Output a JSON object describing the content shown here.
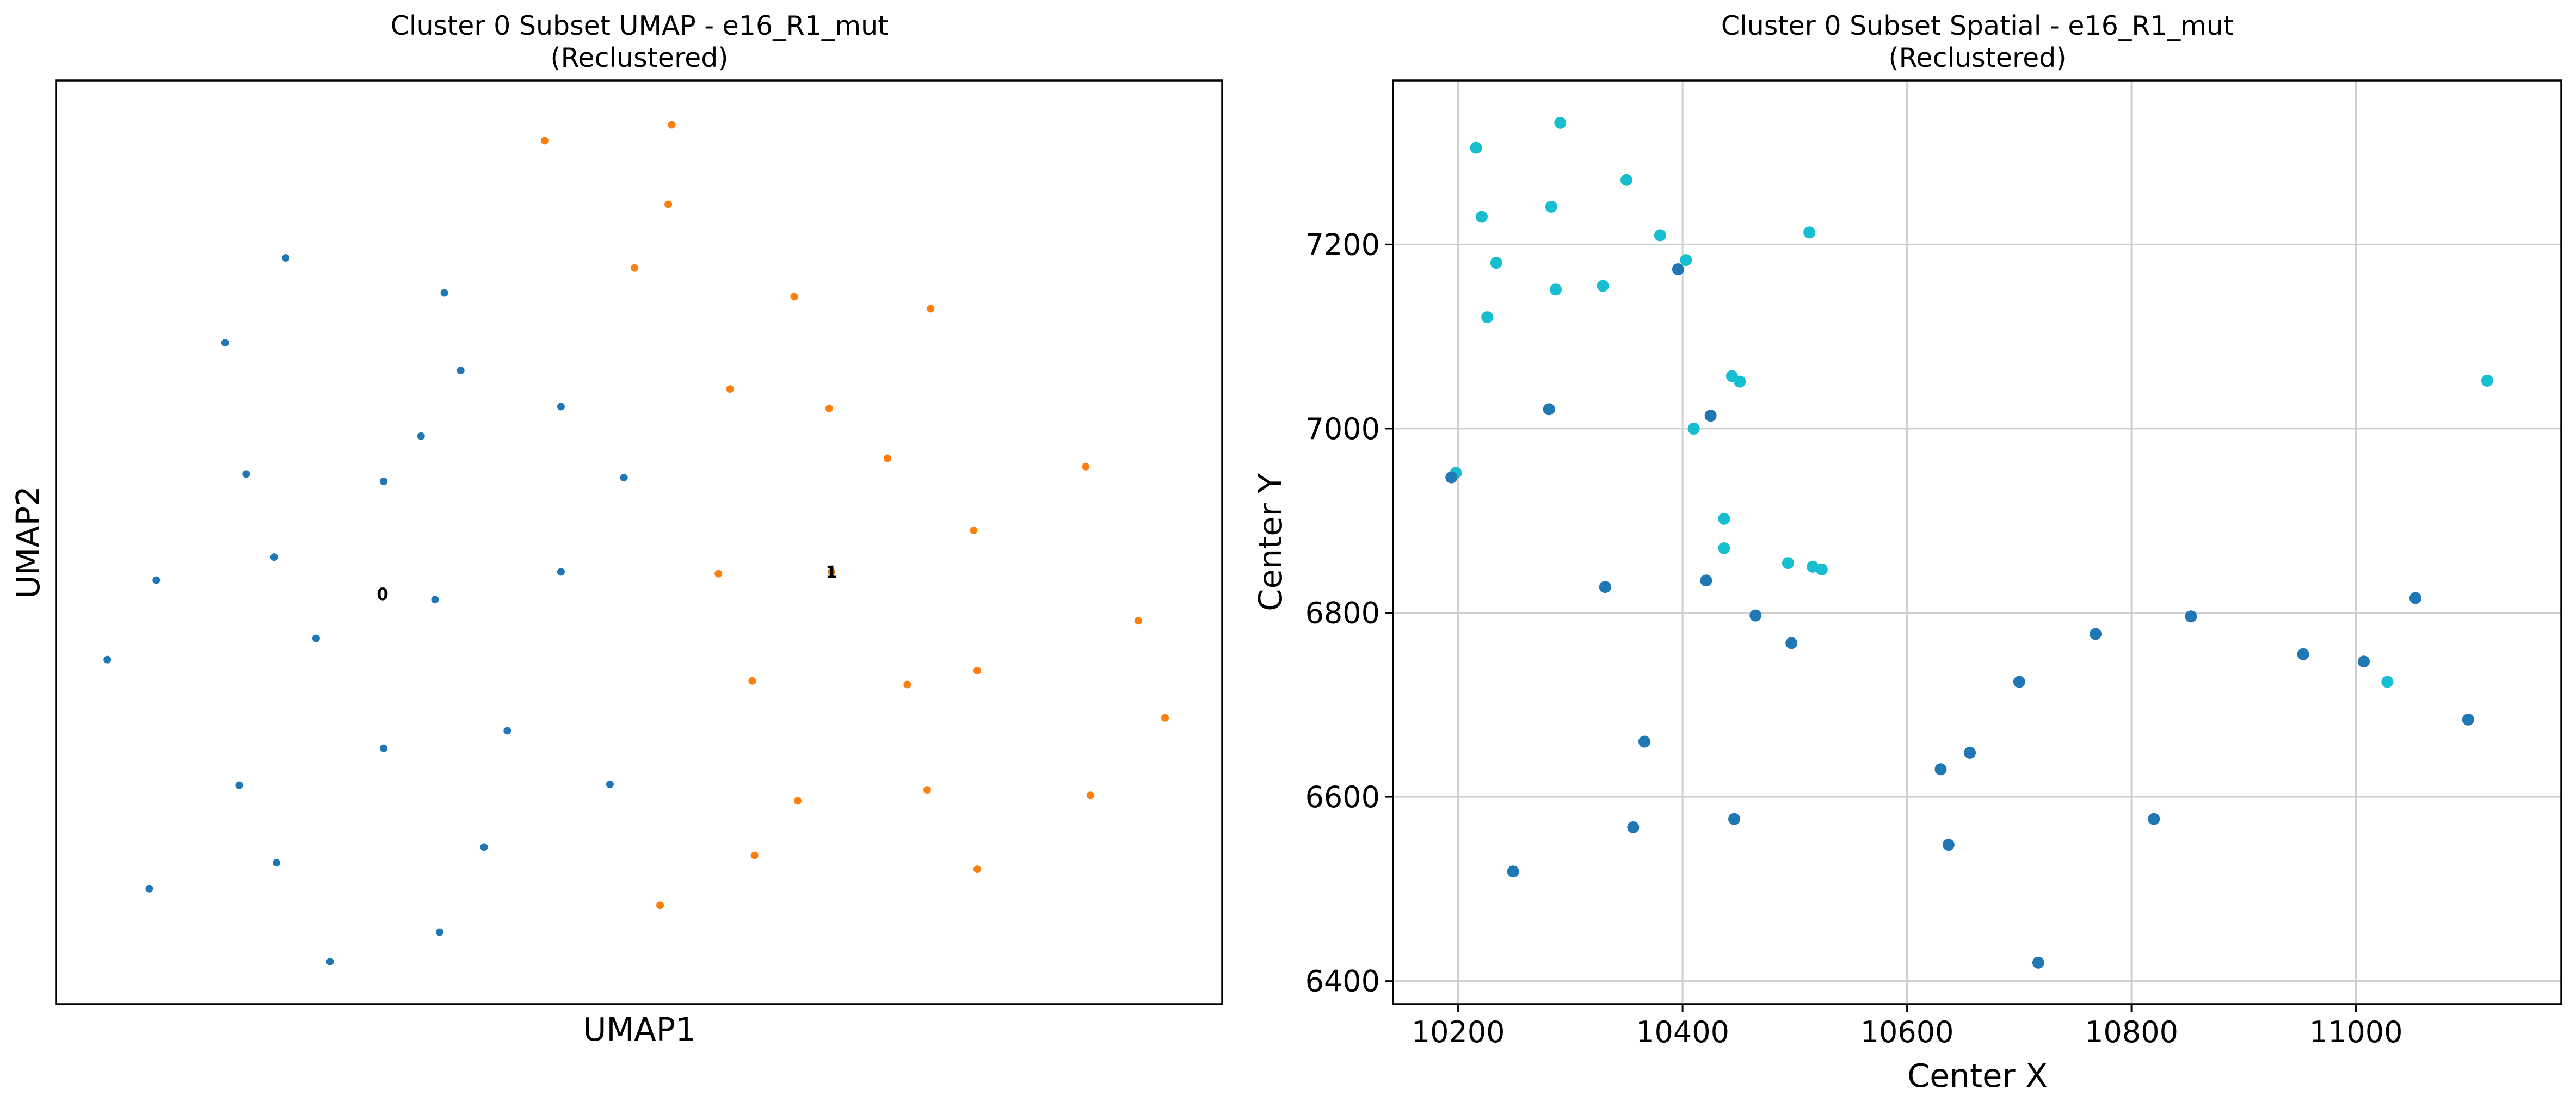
{
  "chart_data": [
    {
      "type": "scatter",
      "title": "Cluster 0 Subset UMAP - e16_R1_mut",
      "subtitle": "(Reclustered)",
      "xlabel": "UMAP1",
      "ylabel": "UMAP2",
      "show_ticks": false,
      "grid": false,
      "xlim": [
        0,
        100
      ],
      "ylim": [
        0,
        100
      ],
      "colors": {
        "0": "#1f77b4",
        "1": "#ff7f0e"
      },
      "cluster_labels": [
        {
          "text": "0",
          "x": 28.0,
          "y": 44.4
        },
        {
          "text": "1",
          "x": 66.5,
          "y": 46.8
        }
      ],
      "series": [
        {
          "cluster": "0",
          "x": [
            19.7,
            33.3,
            14.5,
            34.7,
            43.3,
            31.3,
            16.3,
            28.1,
            48.7,
            18.7,
            8.6,
            43.3,
            32.5,
            22.3,
            4.4,
            28.1,
            38.7,
            15.7,
            47.5,
            36.7,
            18.9,
            8.0,
            32.9,
            23.5
          ],
          "y": [
            80.8,
            77.0,
            71.6,
            68.6,
            64.7,
            61.5,
            57.4,
            56.6,
            57.0,
            48.4,
            45.9,
            46.8,
            43.8,
            39.6,
            37.3,
            27.7,
            29.6,
            23.7,
            23.8,
            17.0,
            15.3,
            12.5,
            7.8,
            4.6
          ]
        },
        {
          "cluster": "1",
          "x": [
            41.9,
            52.8,
            52.5,
            49.6,
            63.3,
            75.0,
            57.8,
            66.3,
            71.3,
            88.3,
            78.7,
            56.8,
            66.5,
            92.8,
            59.7,
            73.0,
            79.0,
            95.1,
            63.6,
            74.7,
            88.7,
            59.9,
            79.0,
            51.8
          ],
          "y": [
            93.5,
            95.2,
            86.6,
            79.7,
            76.6,
            75.3,
            66.6,
            64.5,
            59.1,
            58.2,
            51.3,
            46.6,
            46.8,
            41.5,
            35.0,
            34.6,
            36.1,
            31.0,
            22.0,
            23.2,
            22.6,
            16.1,
            14.6,
            10.7
          ]
        }
      ]
    },
    {
      "type": "scatter",
      "title": "Cluster 0 Subset Spatial - e16_R1_mut",
      "subtitle": "(Reclustered)",
      "xlabel": "Center X",
      "ylabel": "Center Y",
      "show_ticks": true,
      "grid": true,
      "xlim": [
        10142,
        11183
      ],
      "ylim": [
        6375,
        7378
      ],
      "xticks": [
        10200,
        10400,
        10600,
        10800,
        11000
      ],
      "yticks": [
        6400,
        6600,
        6800,
        7000,
        7200
      ],
      "colors": {
        "dark": "#1f77b4",
        "light": "#17becf"
      },
      "series": [
        {
          "cluster": "light",
          "x": [
            10291,
            10216,
            10221,
            10350,
            10283,
            10234,
            10380,
            10403,
            10513,
            10226,
            10287,
            10329,
            10444,
            10451,
            10410,
            10198,
            10437,
            10437,
            10494,
            10516,
            10524,
            10410,
            11117,
            11028
          ],
          "y": [
            7332,
            7305,
            7230,
            7270,
            7241,
            7180,
            7210,
            7183,
            7213,
            7121,
            7151,
            7155,
            7057,
            7051,
            7000,
            6952,
            6902,
            6870,
            6854,
            6850,
            6847,
            7000,
            7052,
            6725
          ]
        },
        {
          "cluster": "dark",
          "x": [
            10396,
            10281,
            10425,
            10194,
            10331,
            10421,
            10465,
            10497,
            10768,
            10853,
            10700,
            10953,
            11007,
            11053,
            11100,
            10366,
            10630,
            10656,
            10356,
            10446,
            10820,
            10637,
            10249,
            10717
          ],
          "y": [
            7173,
            7021,
            7014,
            6947,
            6828,
            6835,
            6797,
            6767,
            6777,
            6796,
            6725,
            6755,
            6747,
            6816,
            6684,
            6660,
            6630,
            6648,
            6567,
            6576,
            6576,
            6548,
            6519,
            6420
          ]
        }
      ]
    }
  ]
}
